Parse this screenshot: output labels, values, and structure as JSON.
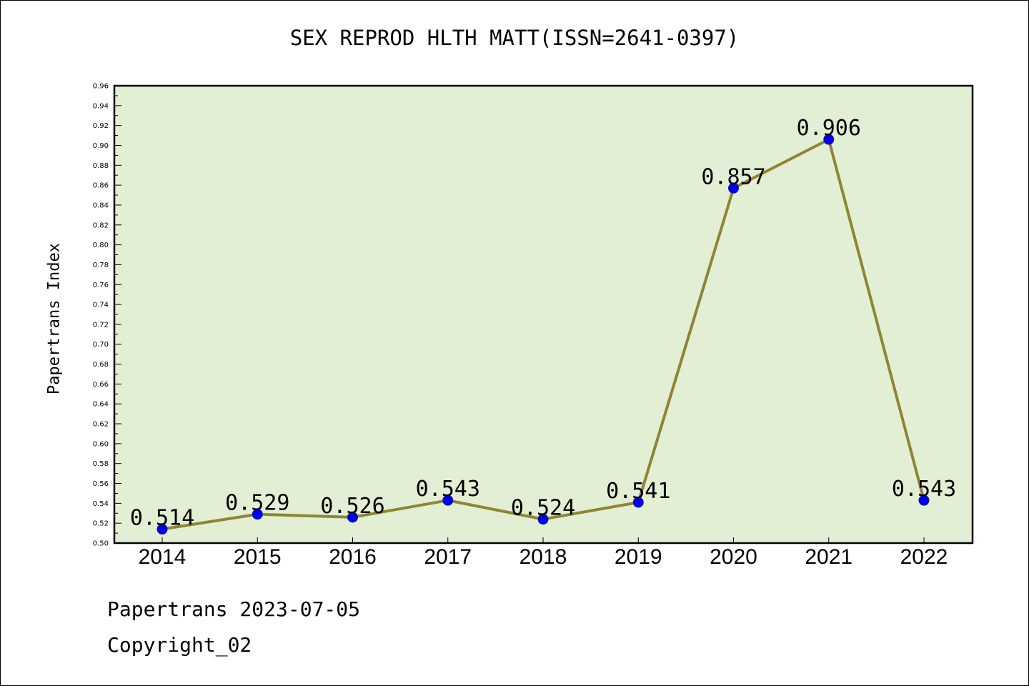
{
  "chart_data": {
    "type": "line",
    "title": "SEX REPROD HLTH MATT(ISSN=2641-0397)",
    "xlabel": "",
    "ylabel": "Papertrans Index",
    "categories": [
      "2014",
      "2015",
      "2016",
      "2017",
      "2018",
      "2019",
      "2020",
      "2021",
      "2022"
    ],
    "values": [
      0.514,
      0.529,
      0.526,
      0.543,
      0.524,
      0.541,
      0.857,
      0.906,
      0.543
    ],
    "data_labels": [
      "0.514",
      "0.529",
      "0.526",
      "0.543",
      "0.524",
      "0.541",
      "0.857",
      "0.906",
      "0.543"
    ],
    "ylim": [
      0.5,
      0.96
    ],
    "ytick_step": 0.02,
    "y_ticks": [
      "0.50",
      "0.52",
      "0.54",
      "0.56",
      "0.58",
      "0.60",
      "0.62",
      "0.64",
      "0.66",
      "0.68",
      "0.70",
      "0.72",
      "0.74",
      "0.76",
      "0.78",
      "0.80",
      "0.82",
      "0.84",
      "0.86",
      "0.88",
      "0.90",
      "0.92",
      "0.94",
      "0.96"
    ],
    "grid": false,
    "legend": "none",
    "colors": {
      "plot_background": "#e2efd5",
      "line": "#8f8535",
      "marker": "#0000ee"
    }
  },
  "footer": {
    "line1": "Papertrans 2023-07-05",
    "line2": "Copyright_02"
  }
}
